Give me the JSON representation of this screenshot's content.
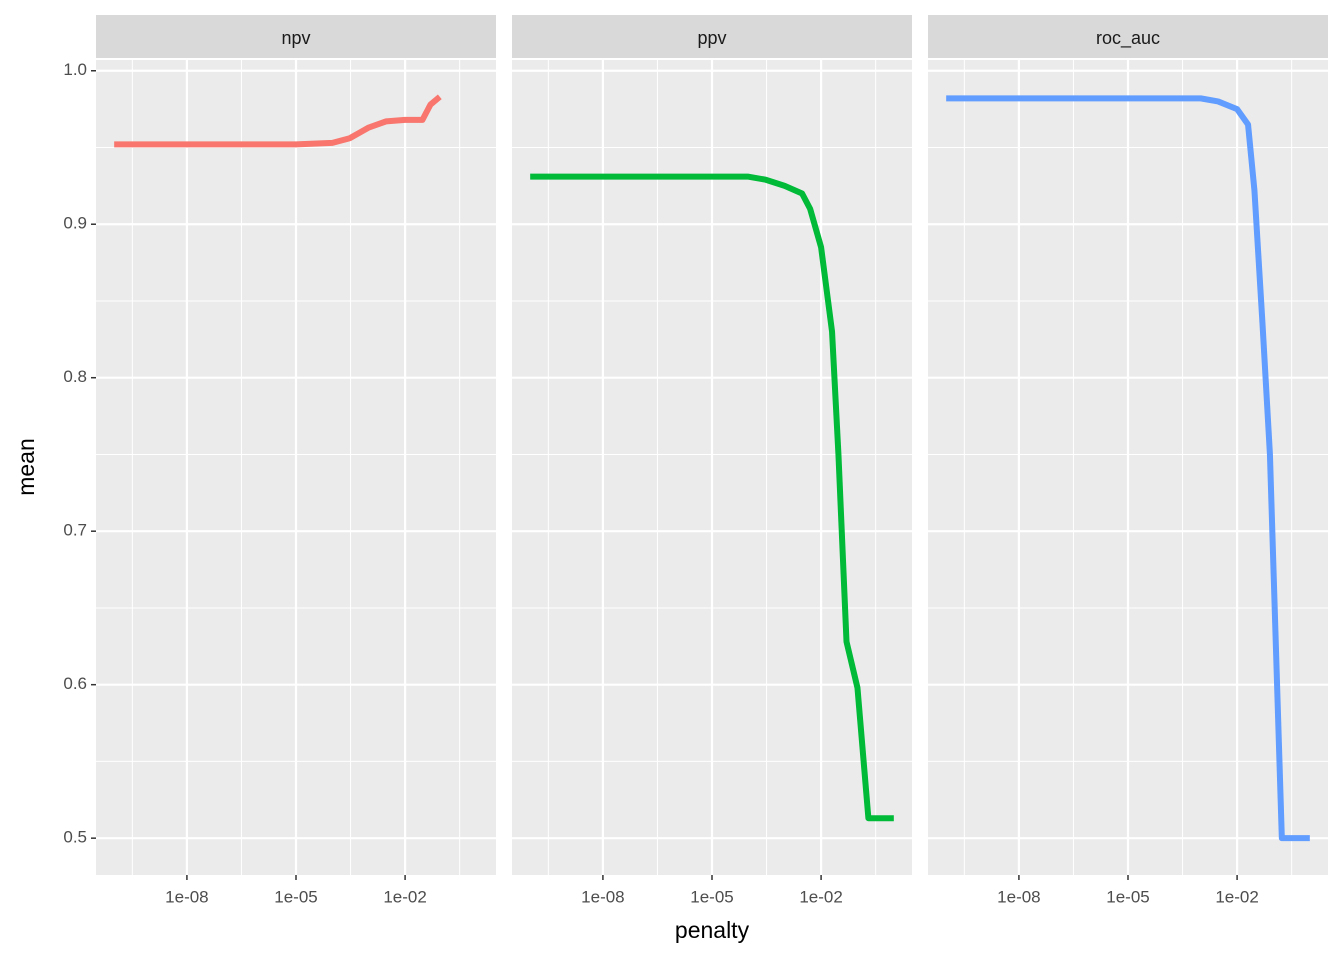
{
  "chart_data": {
    "type": "line",
    "x_label": "penalty",
    "y_label": "mean",
    "log_x": true,
    "grid": true,
    "xlim": [
      3.162e-11,
      3.162
    ],
    "ylim": [
      0.476,
      1.007
    ],
    "xticks": [
      {
        "value": 1e-08,
        "label": "1e-08"
      },
      {
        "value": 1e-05,
        "label": "1e-05"
      },
      {
        "value": 0.01,
        "label": "1e-02"
      }
    ],
    "xminorticks": [
      3.162e-10,
      3.162e-07,
      0.0003162,
      0.3162
    ],
    "yticks": [
      0.5,
      0.6,
      0.7,
      0.8,
      0.9,
      {
        "value": 1,
        "label": "1.0"
      }
    ],
    "yminorticks": [
      0.55,
      0.65,
      0.75,
      0.85,
      0.95
    ],
    "series": [
      {
        "name": "npv",
        "color": "#F8766D",
        "x": [
          1e-10,
          1e-08,
          1e-06,
          1e-05,
          0.0001,
          0.0003,
          0.001,
          0.003,
          0.01,
          0.02,
          0.03,
          0.05,
          0.09
        ],
        "values": [
          0.952,
          0.952,
          0.952,
          0.952,
          0.953,
          0.956,
          0.963,
          0.967,
          0.968,
          0.968,
          0.968,
          0.978,
          0.983
        ]
      },
      {
        "name": "ppv",
        "color": "#00BA38",
        "x": [
          1e-10,
          1e-08,
          1e-06,
          1e-05,
          0.0001,
          0.0003,
          0.001,
          0.003,
          0.005,
          0.01,
          0.02,
          0.03,
          0.05,
          0.1,
          0.2,
          1
        ],
        "values": [
          0.931,
          0.931,
          0.931,
          0.931,
          0.931,
          0.929,
          0.925,
          0.92,
          0.91,
          0.885,
          0.83,
          0.75,
          0.628,
          0.598,
          0.513,
          0.513
        ]
      },
      {
        "name": "roc_auc",
        "color": "#619CFF",
        "x": [
          1e-10,
          1e-08,
          1e-06,
          0.0001,
          0.001,
          0.003,
          0.01,
          0.02,
          0.03,
          0.05,
          0.08,
          0.17,
          1
        ],
        "values": [
          0.982,
          0.982,
          0.982,
          0.982,
          0.982,
          0.98,
          0.975,
          0.965,
          0.922,
          0.835,
          0.75,
          0.5,
          0.5
        ]
      }
    ]
  }
}
